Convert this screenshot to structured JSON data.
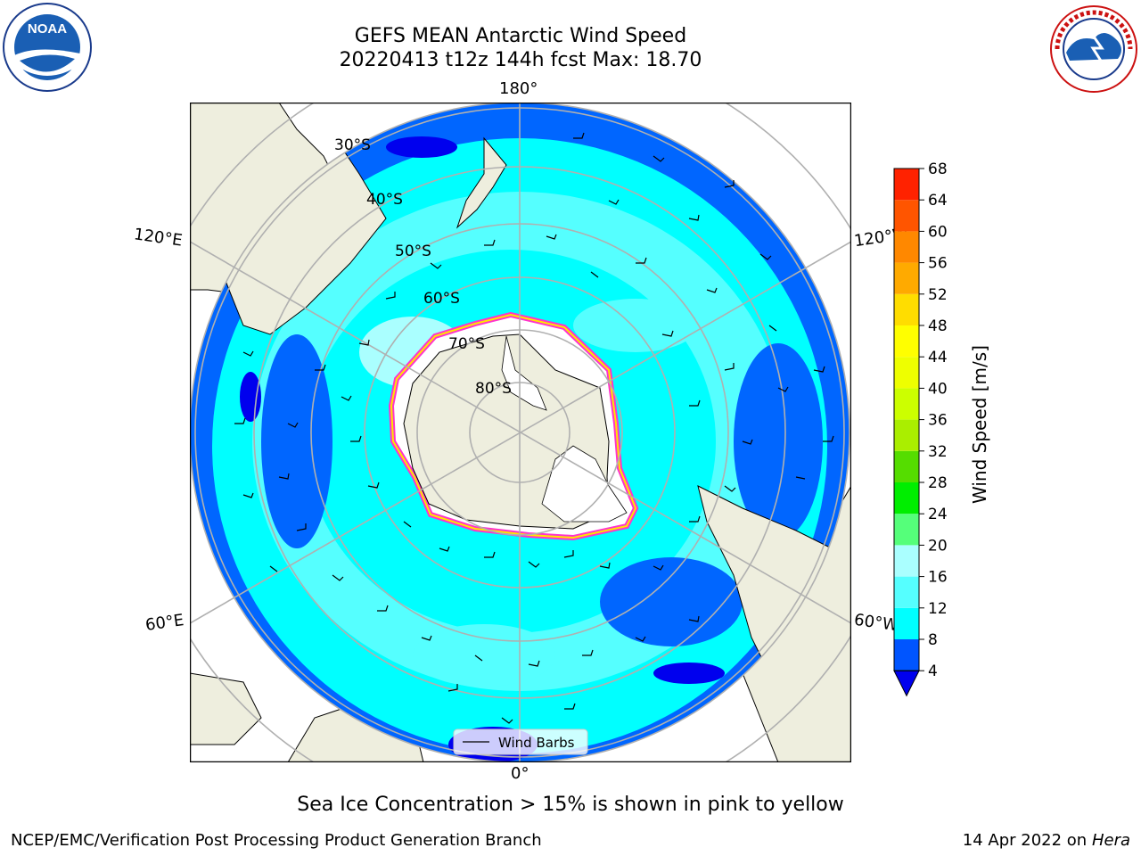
{
  "header": {
    "title_line1": "GEFS MEAN Antarctic Wind Speed",
    "title_line2": "20220413 t12z 144h fcst   Max: 18.70"
  },
  "logos": {
    "left": "NOAA",
    "left_ring_text": "NATIONAL OCEANIC AND ATMOSPHERIC ADMINISTRATION · U.S. DEPARTMENT OF COMMERCE",
    "right_ring_text": "NATIONAL WEATHER SERVICE"
  },
  "map": {
    "longitude_labels": {
      "top": "180°",
      "bottom": "0°",
      "upper_left": "120°E",
      "upper_right": "120°W",
      "lower_left": "60°E",
      "lower_right": "60°W"
    },
    "latitude_labels": [
      "30°S",
      "40°S",
      "50°S",
      "60°S",
      "70°S",
      "80°S"
    ],
    "legend_label": "Wind Barbs"
  },
  "colorbar": {
    "label": "Wind Speed [m/s]",
    "ticks": [
      "4",
      "8",
      "12",
      "16",
      "20",
      "24",
      "28",
      "32",
      "36",
      "40",
      "44",
      "48",
      "52",
      "56",
      "60",
      "64",
      "68"
    ],
    "colors": [
      "#0055ff",
      "#00ffff",
      "#55ffff",
      "#aaffff",
      "#55ff7a",
      "#00ee00",
      "#55dd00",
      "#aaee00",
      "#ccff00",
      "#eeff00",
      "#ffff00",
      "#ffdd00",
      "#ffaa00",
      "#ff8800",
      "#ff5500",
      "#ff2200",
      "#ff0000"
    ],
    "under_color": "#0000ee"
  },
  "notes": {
    "sea_ice": "Sea Ice Concentration > 15% is shown in pink to yellow"
  },
  "footer": {
    "left": "NCEP/EMC/Verification Post Processing Product Generation Branch",
    "right_prefix": "14 Apr 2022 on ",
    "right_host": "Hera"
  }
}
